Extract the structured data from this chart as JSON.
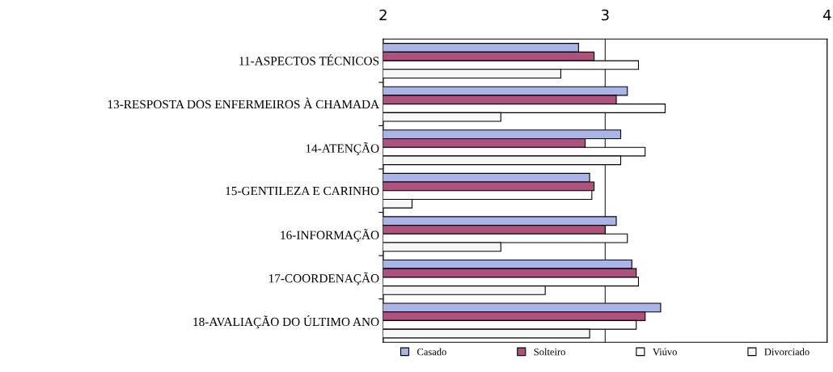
{
  "chart_data": {
    "type": "bar",
    "orientation": "horizontal",
    "categories": [
      "11-ASPECTOS TÉCNICOS",
      "13-RESPOSTA DOS ENFERMEIROS À CHAMADA",
      "14-ATENÇÃO",
      "15-GENTILEZA E CARINHO",
      "16-INFORMAÇÃO",
      "17-COORDENAÇÃO",
      "18-AVALIAÇÃO DO ÚLTIMO ANO"
    ],
    "series": [
      {
        "name": "Casado",
        "color": "#a9b4e8",
        "values": [
          2.88,
          3.1,
          3.07,
          2.93,
          3.05,
          3.12,
          3.25
        ]
      },
      {
        "name": "Solteiro",
        "color": "#b0507c",
        "values": [
          2.95,
          3.05,
          2.91,
          2.95,
          3.0,
          3.14,
          3.18
        ]
      },
      {
        "name": "Viúvo",
        "color": "#ffffff",
        "values": [
          3.15,
          3.27,
          3.18,
          2.94,
          3.1,
          3.15,
          3.14
        ]
      },
      {
        "name": "Divorciado",
        "color": "#f7f7f7",
        "values": [
          2.8,
          2.53,
          3.07,
          2.13,
          2.53,
          2.73,
          2.93
        ]
      }
    ],
    "xlim": [
      2,
      4
    ],
    "xticks": [
      2,
      3,
      4
    ],
    "grid": "x",
    "legend": "bottom"
  }
}
